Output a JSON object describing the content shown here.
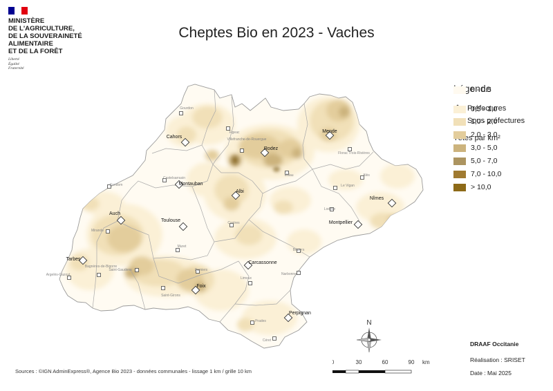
{
  "ministry": {
    "name_lines": [
      "MINISTÈRE",
      "DE L'AGRICULTURE,",
      "DE LA SOUVERAINETÉ",
      "ALIMENTAIRE",
      "ET DE LA FORÊT"
    ],
    "motto": [
      "Liberté",
      "Égalité",
      "Fraternité"
    ],
    "flag_colors": [
      "#000091",
      "#ffffff",
      "#e1000f"
    ]
  },
  "title": "Cheptes Bio en 2023 - Vaches",
  "legend": {
    "title": "Légende",
    "prefectures_label": "Préfectures",
    "sous_prefectures_label": "Sous préfectures",
    "unit_label": "Têtes par km²",
    "classes": [
      {
        "label": "0 - 0.5",
        "color": "#fffaf0"
      },
      {
        "label": "0,5 - 1,0",
        "color": "#fbf0d6"
      },
      {
        "label": "1,0 - 2,0",
        "color": "#f1e0b8"
      },
      {
        "label": "2,0 - 3,0",
        "color": "#e3cd9c"
      },
      {
        "label": "3,0 - 5,0",
        "color": "#ccb37d"
      },
      {
        "label": "5,0 - 7,0",
        "color": "#ac9460"
      },
      {
        "label": "7,0 - 10,0",
        "color": "#a07a30"
      },
      {
        "label": "> 10,0",
        "color": "#8d6a18"
      }
    ]
  },
  "prefectures": [
    {
      "name": "Mende"
    },
    {
      "name": "Cahors"
    },
    {
      "name": "Rodez"
    },
    {
      "name": "Montauban"
    },
    {
      "name": "Albi"
    },
    {
      "name": "Nîmes"
    },
    {
      "name": "Auch"
    },
    {
      "name": "Toulouse"
    },
    {
      "name": "Montpellier"
    },
    {
      "name": "Tarbes"
    },
    {
      "name": "Carcassonne"
    },
    {
      "name": "Foix"
    },
    {
      "name": "Perpignan"
    }
  ],
  "sous_prefectures": [
    {
      "name": "Gourdon"
    },
    {
      "name": "Figeac"
    },
    {
      "name": "Villefranche-de-Rouergue"
    },
    {
      "name": "Millau"
    },
    {
      "name": "Florac Trois-Rivières"
    },
    {
      "name": "Castelsarrasin"
    },
    {
      "name": "Condom"
    },
    {
      "name": "Alès"
    },
    {
      "name": "Le Vigan"
    },
    {
      "name": "Lodève"
    },
    {
      "name": "Castres"
    },
    {
      "name": "Mirande"
    },
    {
      "name": "Muret"
    },
    {
      "name": "Béziers"
    },
    {
      "name": "Bagnères-de-Bigorre"
    },
    {
      "name": "Saint-Gaudens"
    },
    {
      "name": "Pamiers"
    },
    {
      "name": "Narbonne"
    },
    {
      "name": "Limoux"
    },
    {
      "name": "Argelès-Gazost"
    },
    {
      "name": "Saint-Girons"
    },
    {
      "name": "Prades"
    },
    {
      "name": "Céret"
    }
  ],
  "compass_label": "N",
  "scale": {
    "ticks": [
      "0",
      "30",
      "60",
      "90"
    ],
    "unit": "km"
  },
  "credits": {
    "org": "DRAAF Occitanie",
    "realisation": "Réalisation : SRISET",
    "date": "Date : Mai 2025"
  },
  "sources": "Sources : ©IGN AdminExpress®, Agence Bio 2023 - données communales - lissage 1 km / grille 10 km"
}
